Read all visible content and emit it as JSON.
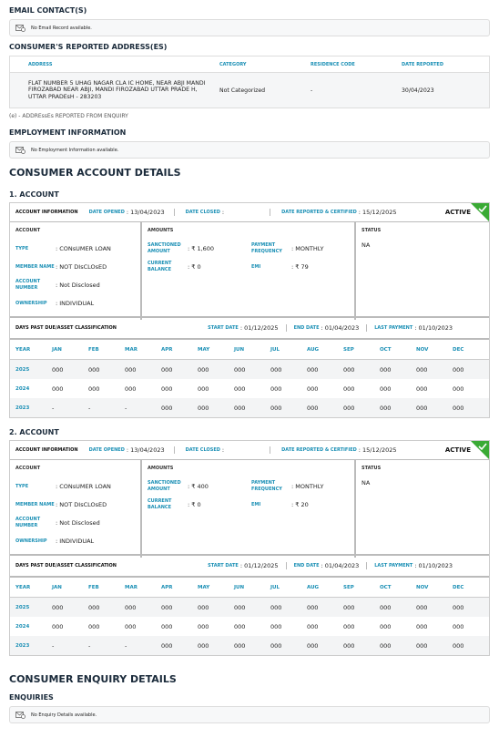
{
  "email": {
    "title": "EMAIL CONTACT(S)",
    "empty": "No Email Record available."
  },
  "address": {
    "title": "CONSUMER'S REPORTED ADDRESS(ES)",
    "headers": [
      "ADDRESS",
      "CATEGORY",
      "RESIDENCE CODE",
      "DATE REPORTED"
    ],
    "rows": [
      [
        "FLAT NUMBER 5 UHAG NAGAR CLA IC HOME, NEAR ABJI MANDI FIROZABAD NEAR ABJI, MANDI FIROZABAD UTTAR PRADE H, UTTAR PRADEsH - 283203",
        "Not Categorized",
        "-",
        "30/04/2023"
      ]
    ],
    "note": "(e) - ADDREssEs REPORTED FROM ENQUIRY"
  },
  "employment": {
    "title": "EMPLOYMENT INFORMATION",
    "empty": "No Employment Information available."
  },
  "accounts_title": "CONSUMER ACCOUNT DETAILS",
  "accounts": [
    {
      "heading": "1. ACCOUNT",
      "info_label": "ACCOUNT INFORMATION",
      "date_opened_label": "DATE OPENED",
      "date_opened": ": 13/04/2023",
      "date_closed_label": "DATE CLOSED",
      "date_closed": ":",
      "date_reported_label": "DATE REPORTED & CERTIFIED",
      "date_reported": ": 15/12/2025",
      "badge": "ACTIVE",
      "account_title": "ACCOUNT",
      "account_fields": [
        {
          "label": "TYPE",
          "value": ": CONsUMER LOAN"
        },
        {
          "label": "MEMBER NAME",
          "value": ": NOT DIsCLOsED"
        },
        {
          "label": "ACCOUNT NUMBER",
          "value": ": Not Disclosed"
        },
        {
          "label": "OWNERSHIP",
          "value": ": INDIVIDUAL"
        }
      ],
      "amounts_title": "AMOUNTS",
      "amount_fields": [
        {
          "label": "SANCTIONED AMOUNT",
          "value": ": ₹ 1,600"
        },
        {
          "label": "PAYMENT FREQUENCY",
          "value": ": MONTHLY"
        },
        {
          "label": "CURRENT BALANCE",
          "value": ": ₹ 0"
        },
        {
          "label": "EMI",
          "value": ": ₹ 79"
        }
      ],
      "status_title": "STATUS",
      "status": "NA",
      "dpd": {
        "title": "DAYS PAST DUE/ASSET CLASSIFICATION",
        "start_label": "START DATE",
        "start": ": 01/12/2025",
        "end_label": "END DATE",
        "end": ": 01/04/2023",
        "last_label": "LAST PAYMENT",
        "last": ": 01/10/2023",
        "headers": [
          "YEAR",
          "JAN",
          "FEB",
          "MAR",
          "APR",
          "MAY",
          "JUN",
          "JUL",
          "AUG",
          "SEP",
          "OCT",
          "NOV",
          "DEC"
        ],
        "rows": [
          [
            "2025",
            "000",
            "000",
            "000",
            "000",
            "000",
            "000",
            "000",
            "000",
            "000",
            "000",
            "000",
            "000"
          ],
          [
            "2024",
            "000",
            "000",
            "000",
            "000",
            "000",
            "000",
            "000",
            "000",
            "000",
            "000",
            "000",
            "000"
          ],
          [
            "2023",
            "-",
            "-",
            "-",
            "000",
            "000",
            "000",
            "000",
            "000",
            "000",
            "000",
            "000",
            "000"
          ]
        ]
      }
    },
    {
      "heading": "2. ACCOUNT",
      "info_label": "ACCOUNT INFORMATION",
      "date_opened_label": "DATE OPENED",
      "date_opened": ": 13/04/2023",
      "date_closed_label": "DATE CLOSED",
      "date_closed": ":",
      "date_reported_label": "DATE REPORTED & CERTIFIED",
      "date_reported": ": 15/12/2025",
      "badge": "ACTIVE",
      "account_title": "ACCOUNT",
      "account_fields": [
        {
          "label": "TYPE",
          "value": ": CONsUMER LOAN"
        },
        {
          "label": "MEMBER NAME",
          "value": ": NOT DIsCLOsED"
        },
        {
          "label": "ACCOUNT NUMBER",
          "value": ": Not Disclosed"
        },
        {
          "label": "OWNERSHIP",
          "value": ": INDIVIDUAL"
        }
      ],
      "amounts_title": "AMOUNTS",
      "amount_fields": [
        {
          "label": "SANCTIONED AMOUNT",
          "value": ": ₹ 400"
        },
        {
          "label": "PAYMENT FREQUENCY",
          "value": ": MONTHLY"
        },
        {
          "label": "CURRENT BALANCE",
          "value": ": ₹ 0"
        },
        {
          "label": "EMI",
          "value": ": ₹ 20"
        }
      ],
      "status_title": "STATUS",
      "status": "NA",
      "dpd": {
        "title": "DAYS PAST DUE/ASSET CLASSIFICATION",
        "start_label": "START DATE",
        "start": ": 01/12/2025",
        "end_label": "END DATE",
        "end": ": 01/04/2023",
        "last_label": "LAST PAYMENT",
        "last": ": 01/10/2023",
        "headers": [
          "YEAR",
          "JAN",
          "FEB",
          "MAR",
          "APR",
          "MAY",
          "JUN",
          "JUL",
          "AUG",
          "SEP",
          "OCT",
          "NOV",
          "DEC"
        ],
        "rows": [
          [
            "2025",
            "000",
            "000",
            "000",
            "000",
            "000",
            "000",
            "000",
            "000",
            "000",
            "000",
            "000",
            "000"
          ],
          [
            "2024",
            "000",
            "000",
            "000",
            "000",
            "000",
            "000",
            "000",
            "000",
            "000",
            "000",
            "000",
            "000"
          ],
          [
            "2023",
            "-",
            "-",
            "-",
            "000",
            "000",
            "000",
            "000",
            "000",
            "000",
            "000",
            "000",
            "000"
          ]
        ]
      }
    }
  ],
  "enquiry": {
    "title": "CONSUMER ENQUIRY DETAILS",
    "subtitle": "ENQUIRIES",
    "empty": "No Enquiry Details available."
  }
}
